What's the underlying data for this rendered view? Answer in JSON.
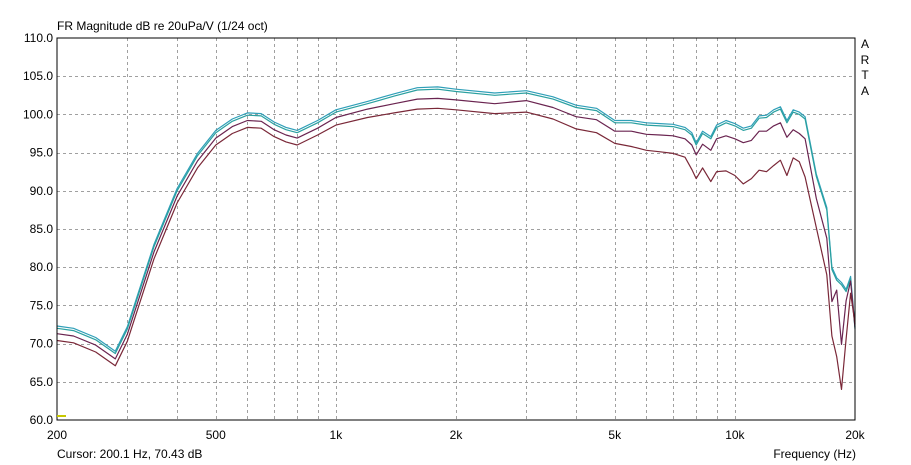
{
  "title": "FR Magnitude dB re 20uPa/V (1/24 oct)",
  "cursor": "Cursor: 200.1 Hz, 70.43 dB",
  "brand": [
    "A",
    "R",
    "T",
    "A"
  ],
  "chart_data": {
    "type": "line",
    "title": "FR Magnitude dB re 20uPa/V (1/24 oct)",
    "xlabel": "Frequency (Hz)",
    "ylabel": "",
    "xscale": "log",
    "xlim": [
      200,
      20000
    ],
    "ylim": [
      60,
      110
    ],
    "grid": true,
    "y_ticks": [
      "60.0",
      "65.0",
      "70.0",
      "75.0",
      "80.0",
      "85.0",
      "90.0",
      "95.0",
      "100.0",
      "105.0",
      "110.0"
    ],
    "x_ticks": [
      {
        "value": 200,
        "label": "200"
      },
      {
        "value": 500,
        "label": "500"
      },
      {
        "value": 1000,
        "label": "1k"
      },
      {
        "value": 2000,
        "label": "2k"
      },
      {
        "value": 5000,
        "label": "5k"
      },
      {
        "value": 10000,
        "label": "10k"
      },
      {
        "value": 20000,
        "label": "20k"
      }
    ],
    "x_grid_minor": [
      300,
      400,
      600,
      700,
      800,
      900,
      3000,
      4000,
      6000,
      7000,
      8000,
      9000
    ],
    "x": [
      200,
      220,
      250,
      280,
      300,
      350,
      400,
      450,
      500,
      550,
      600,
      650,
      700,
      750,
      800,
      900,
      1000,
      1200,
      1400,
      1600,
      1800,
      2000,
      2500,
      3000,
      3500,
      4000,
      4500,
      5000,
      5500,
      6000,
      6500,
      7000,
      7500,
      7800,
      8000,
      8300,
      8700,
      9000,
      9500,
      10000,
      10500,
      11000,
      11500,
      12000,
      12500,
      13000,
      13500,
      14000,
      14500,
      15000,
      16000,
      17000,
      17500,
      18000,
      18500,
      19000,
      19500,
      20000
    ],
    "series": [
      {
        "color": "#2f9fb8",
        "values": [
          72.3,
          72.0,
          70.8,
          69.0,
          72.2,
          83.0,
          90.3,
          94.9,
          97.9,
          99.4,
          100.2,
          100.1,
          99.0,
          98.3,
          97.9,
          99.2,
          100.6,
          101.7,
          102.7,
          103.5,
          103.6,
          103.3,
          102.8,
          103.1,
          102.3,
          101.2,
          100.8,
          99.2,
          99.2,
          98.9,
          98.8,
          98.7,
          98.3,
          97.6,
          96.3,
          97.8,
          97.1,
          98.6,
          99.2,
          98.8,
          98.2,
          98.5,
          99.8,
          99.9,
          100.6,
          101.0,
          99.2,
          100.6,
          100.3,
          99.7,
          92.2,
          87.8,
          80.0,
          78.6,
          78.0,
          77.1,
          78.8,
          72.2
        ]
      },
      {
        "color": "#2aa0a0",
        "values": [
          72.0,
          71.7,
          70.5,
          68.7,
          71.9,
          82.7,
          90.0,
          94.6,
          97.6,
          99.1,
          99.9,
          99.8,
          98.7,
          98.0,
          97.6,
          98.9,
          100.3,
          101.4,
          102.4,
          103.2,
          103.3,
          103.0,
          102.5,
          102.8,
          102.0,
          100.9,
          100.5,
          98.9,
          98.9,
          98.6,
          98.5,
          98.4,
          98.0,
          97.3,
          96.0,
          97.5,
          96.8,
          98.3,
          98.9,
          98.5,
          97.9,
          98.2,
          99.5,
          99.6,
          100.3,
          100.7,
          98.9,
          100.3,
          100.0,
          99.4,
          91.9,
          87.5,
          79.7,
          78.3,
          77.7,
          76.8,
          78.5,
          71.9
        ]
      },
      {
        "color": "#6a2450",
        "values": [
          71.3,
          71.0,
          69.8,
          68.0,
          71.2,
          82.0,
          89.3,
          93.9,
          96.9,
          98.4,
          99.2,
          99.1,
          98.0,
          97.3,
          96.9,
          98.2,
          99.6,
          100.7,
          101.4,
          102.0,
          102.1,
          101.9,
          101.4,
          101.8,
          100.9,
          99.7,
          99.3,
          97.8,
          97.8,
          97.4,
          97.3,
          97.2,
          96.8,
          96.0,
          94.7,
          96.1,
          95.3,
          96.8,
          97.2,
          96.8,
          96.3,
          96.6,
          97.8,
          97.8,
          98.5,
          98.9,
          97.0,
          98.0,
          97.5,
          96.8,
          89.0,
          83.8,
          75.5,
          77.0,
          69.9,
          75.6,
          78.2,
          72.1
        ]
      },
      {
        "color": "#7a2838",
        "values": [
          70.4,
          70.1,
          68.9,
          67.1,
          70.3,
          81.1,
          88.4,
          93.0,
          96.0,
          97.5,
          98.3,
          98.2,
          97.1,
          96.4,
          96.0,
          97.3,
          98.6,
          99.6,
          100.2,
          100.7,
          100.8,
          100.6,
          100.1,
          100.3,
          99.4,
          98.1,
          97.6,
          96.2,
          95.8,
          95.3,
          95.1,
          94.9,
          94.4,
          92.8,
          91.6,
          93.0,
          91.2,
          92.5,
          92.6,
          92.0,
          90.9,
          91.6,
          92.7,
          92.5,
          93.3,
          94.0,
          92.0,
          94.3,
          93.8,
          91.8,
          85.2,
          79.0,
          71.0,
          68.3,
          64.0,
          70.6,
          76.6,
          72.6
        ]
      }
    ]
  }
}
